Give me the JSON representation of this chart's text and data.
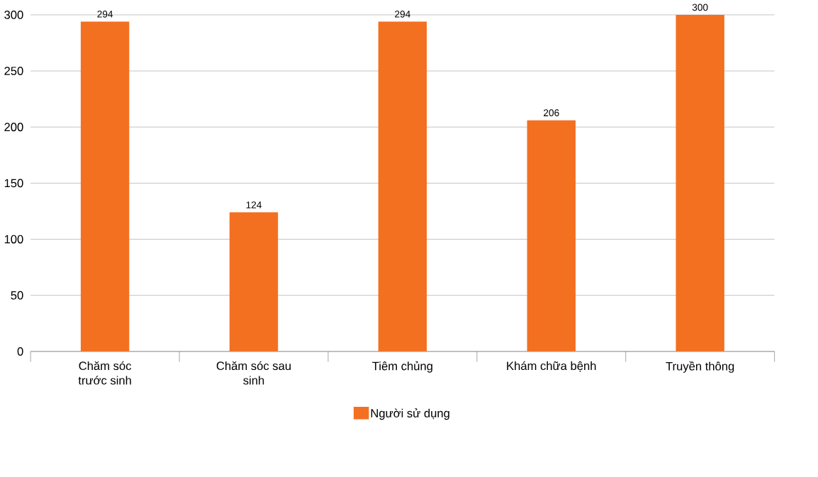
{
  "chart_data": {
    "type": "bar",
    "categories": [
      "Chăm sóc trước sinh",
      "Chăm sóc sau sinh",
      "Tiêm chủng",
      "Khám chữa bệnh",
      "Truyền thông"
    ],
    "series": [
      {
        "name": "Người sử dụng",
        "color": "#f37021",
        "values": [
          294,
          124,
          294,
          206,
          300
        ]
      }
    ],
    "ylim": [
      0,
      300
    ],
    "yticks": [
      0,
      50,
      100,
      150,
      200,
      250,
      300
    ],
    "grid": "y",
    "legend": "bottom",
    "data_labels": true
  }
}
